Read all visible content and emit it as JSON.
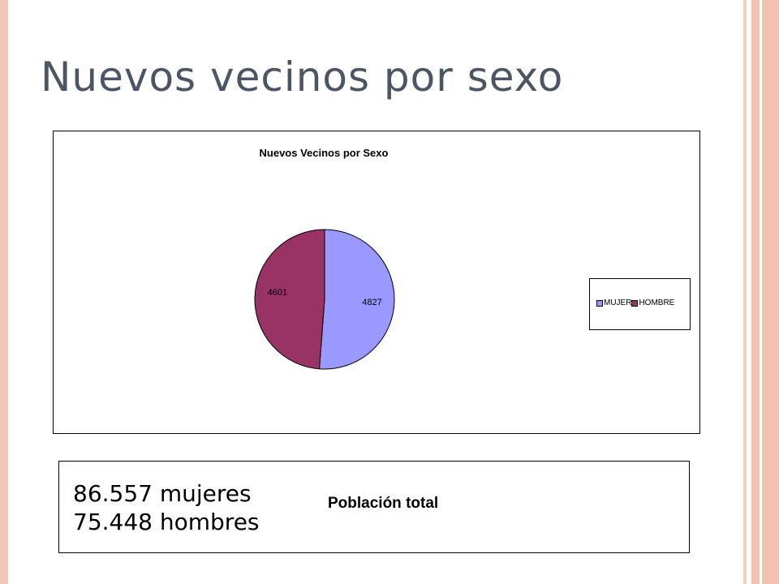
{
  "slide": {
    "title": "Nuevos vecinos por sexo"
  },
  "chart_data": {
    "type": "pie",
    "title": "Nuevos Vecinos por Sexo",
    "categories": [
      "MUJER",
      "HOMBRE"
    ],
    "values": [
      4827,
      4601
    ],
    "colors": [
      "#9999ff",
      "#993366"
    ],
    "data_labels": [
      "4827",
      "4601"
    ],
    "legend_position": "right",
    "legend": [
      "MUJER",
      "HOMBRE"
    ]
  },
  "population": {
    "women": "86.557 mujeres",
    "men": "75.448 hombres",
    "label": "Población total"
  }
}
